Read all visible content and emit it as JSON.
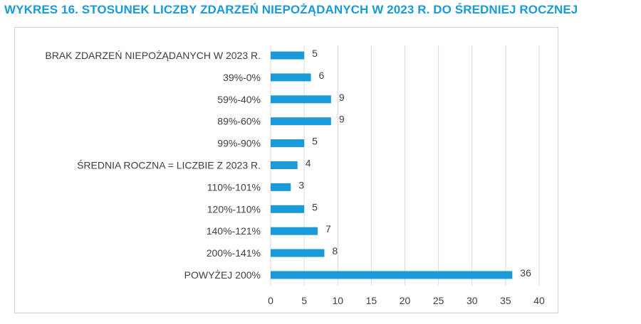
{
  "title": "WYKRES 16. STOSUNEK LICZBY ZDARZEŃ NIEPOŻĄDANYCH W 2023 R. DO ŚREDNIEJ ROCZNEJ",
  "colors": {
    "title": "#1a9ad6",
    "bar": "#1a9ad6",
    "grid": "#d9d9d9",
    "text": "#404040"
  },
  "chart_data": {
    "type": "bar",
    "orientation": "horizontal",
    "categories": [
      "BRAK ZDARZEŃ NIEPOŻĄDANYCH W 2023 R.",
      "39%-0%",
      "59%-40%",
      "89%-60%",
      "99%-90%",
      "ŚREDNIA ROCZNA = LICZBIE Z 2023 R.",
      "110%-101%",
      "120%-110%",
      "140%-121%",
      "200%-141%",
      "POWYŻEJ 200%"
    ],
    "values": [
      5,
      6,
      9,
      9,
      5,
      4,
      3,
      5,
      7,
      8,
      36
    ],
    "xlim": [
      0,
      40
    ],
    "xticks": [
      0,
      5,
      10,
      15,
      20,
      25,
      30,
      35,
      40
    ],
    "grid": "vertical",
    "data_labels": true
  }
}
